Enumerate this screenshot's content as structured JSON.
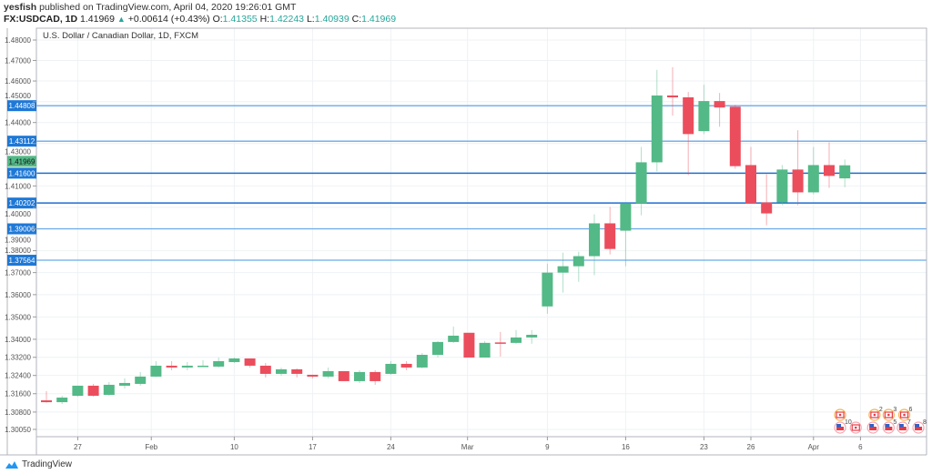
{
  "header": {
    "author": "yesfish",
    "published": "published on TradingView.com, April 04, 2020 19:26:01 GMT",
    "symbol": "FX:USDCAD, 1D",
    "last": "1.41969",
    "change": "+0.00614 (+0.43%)",
    "o_label": "O:",
    "o": "1.41355",
    "h_label": "H:",
    "h": "1.42243",
    "l_label": "L:",
    "l": "1.40939",
    "c_label": "C:",
    "c": "1.41969"
  },
  "footer": {
    "logo": "TradingView"
  },
  "colors": {
    "up": "#53b987",
    "down": "#eb4d5c",
    "line": "#1e78d6",
    "grid": "#eef2f5"
  },
  "chart_data": {
    "type": "candlestick",
    "title": "U.S. Dollar / Canadian Dollar, 1D, FXCM",
    "scale": "log",
    "ylim": [
      1.3005,
      1.48
    ],
    "y_ticks": [
      "1.48000",
      "1.47000",
      "1.46000",
      "1.45000",
      "1.44000",
      "1.43000",
      "1.41000",
      "1.40000",
      "1.39000",
      "1.38000",
      "1.37000",
      "1.36000",
      "1.35000",
      "1.34000",
      "1.33200",
      "1.32400",
      "1.31600",
      "1.30800",
      "1.30050"
    ],
    "x_ticks": [
      {
        "label": "27",
        "index": 2
      },
      {
        "label": "Feb",
        "index": 6.7
      },
      {
        "label": "10",
        "index": 12
      },
      {
        "label": "17",
        "index": 17
      },
      {
        "label": "24",
        "index": 22
      },
      {
        "label": "Mar",
        "index": 26.9
      },
      {
        "label": "9",
        "index": 32
      },
      {
        "label": "16",
        "index": 37
      },
      {
        "label": "23",
        "index": 42
      },
      {
        "label": "26",
        "index": 45
      },
      {
        "label": "Apr",
        "index": 49
      },
      {
        "label": "6",
        "index": 52
      }
    ],
    "horizontal_lines": [
      {
        "value": "1.44808",
        "dark": false
      },
      {
        "value": "1.43112",
        "dark": false
      },
      {
        "value": "1.41600",
        "dark": true
      },
      {
        "value": "1.40202",
        "dark": true
      },
      {
        "value": "1.39006",
        "dark": false
      },
      {
        "value": "1.37564",
        "dark": false
      }
    ],
    "last_price": "1.41969",
    "candles": [
      {
        "d": "Jan 23",
        "o": 1.3131,
        "h": 1.3171,
        "l": 1.3121,
        "c": 1.3123
      },
      {
        "d": "Jan 24",
        "o": 1.3123,
        "h": 1.3151,
        "l": 1.3115,
        "c": 1.3143
      },
      {
        "d": "Jan 27",
        "o": 1.3151,
        "h": 1.3195,
        "l": 1.3147,
        "c": 1.3195
      },
      {
        "d": "Jan 28",
        "o": 1.3195,
        "h": 1.3203,
        "l": 1.3147,
        "c": 1.3151
      },
      {
        "d": "Jan 29",
        "o": 1.3155,
        "h": 1.3211,
        "l": 1.3151,
        "c": 1.3199
      },
      {
        "d": "Jan 30",
        "o": 1.3195,
        "h": 1.3227,
        "l": 1.3183,
        "c": 1.3207
      },
      {
        "d": "Jan 31",
        "o": 1.3203,
        "h": 1.3255,
        "l": 1.3195,
        "c": 1.3235
      },
      {
        "d": "Feb 3",
        "o": 1.3235,
        "h": 1.3303,
        "l": 1.3233,
        "c": 1.3283
      },
      {
        "d": "Feb 4",
        "o": 1.3283,
        "h": 1.3303,
        "l": 1.3263,
        "c": 1.3275
      },
      {
        "d": "Feb 5",
        "o": 1.3275,
        "h": 1.3299,
        "l": 1.3263,
        "c": 1.3283
      },
      {
        "d": "Feb 6",
        "o": 1.3282,
        "h": 1.3307,
        "l": 1.3279,
        "c": 1.3283
      },
      {
        "d": "Feb 7",
        "o": 1.3279,
        "h": 1.3319,
        "l": 1.3275,
        "c": 1.3303
      },
      {
        "d": "Feb 10",
        "o": 1.3299,
        "h": 1.3319,
        "l": 1.3295,
        "c": 1.3315
      },
      {
        "d": "Feb 11",
        "o": 1.3315,
        "h": 1.3315,
        "l": 1.3275,
        "c": 1.3283
      },
      {
        "d": "Feb 12",
        "o": 1.3283,
        "h": 1.3295,
        "l": 1.3231,
        "c": 1.3247
      },
      {
        "d": "Feb 13",
        "o": 1.3247,
        "h": 1.3275,
        "l": 1.3239,
        "c": 1.3267
      },
      {
        "d": "Feb 14",
        "o": 1.3267,
        "h": 1.3271,
        "l": 1.3231,
        "c": 1.3247
      },
      {
        "d": "Feb 17",
        "o": 1.3243,
        "h": 1.3243,
        "l": 1.3227,
        "c": 1.3235
      },
      {
        "d": "Feb 18",
        "o": 1.3235,
        "h": 1.3275,
        "l": 1.3227,
        "c": 1.3259
      },
      {
        "d": "Feb 19",
        "o": 1.3259,
        "h": 1.3259,
        "l": 1.3215,
        "c": 1.3215
      },
      {
        "d": "Feb 20",
        "o": 1.3215,
        "h": 1.3263,
        "l": 1.3207,
        "c": 1.3255
      },
      {
        "d": "Feb 21",
        "o": 1.3255,
        "h": 1.3263,
        "l": 1.3199,
        "c": 1.3215
      },
      {
        "d": "Feb 24",
        "o": 1.3247,
        "h": 1.3303,
        "l": 1.3243,
        "c": 1.3291
      },
      {
        "d": "Feb 25",
        "o": 1.3291,
        "h": 1.3303,
        "l": 1.3263,
        "c": 1.3275
      },
      {
        "d": "Feb 26",
        "o": 1.3275,
        "h": 1.3339,
        "l": 1.3271,
        "c": 1.3331
      },
      {
        "d": "Feb 27",
        "o": 1.3331,
        "h": 1.3392,
        "l": 1.3319,
        "c": 1.3388
      },
      {
        "d": "Feb 28",
        "o": 1.3388,
        "h": 1.3457,
        "l": 1.3384,
        "c": 1.3416
      },
      {
        "d": "Mar 2",
        "o": 1.3429,
        "h": 1.3429,
        "l": 1.3319,
        "c": 1.3319
      },
      {
        "d": "Mar 3",
        "o": 1.3319,
        "h": 1.3392,
        "l": 1.3319,
        "c": 1.3384
      },
      {
        "d": "Mar 4",
        "o": 1.3386,
        "h": 1.3433,
        "l": 1.3323,
        "c": 1.3382
      },
      {
        "d": "Mar 5",
        "o": 1.3384,
        "h": 1.3441,
        "l": 1.338,
        "c": 1.3408
      },
      {
        "d": "Mar 6",
        "o": 1.3408,
        "h": 1.3441,
        "l": 1.338,
        "c": 1.342
      },
      {
        "d": "Mar 9",
        "o": 1.3547,
        "h": 1.3741,
        "l": 1.3514,
        "c": 1.37
      },
      {
        "d": "Mar 10",
        "o": 1.37,
        "h": 1.3791,
        "l": 1.3609,
        "c": 1.3729
      },
      {
        "d": "Mar 11",
        "o": 1.3729,
        "h": 1.3795,
        "l": 1.3658,
        "c": 1.3775
      },
      {
        "d": "Mar 12",
        "o": 1.3775,
        "h": 1.3968,
        "l": 1.3688,
        "c": 1.3926
      },
      {
        "d": "Mar 13",
        "o": 1.3926,
        "h": 1.4002,
        "l": 1.3783,
        "c": 1.3808
      },
      {
        "d": "Mar 16",
        "o": 1.3892,
        "h": 1.4019,
        "l": 1.3729,
        "c": 1.4019
      },
      {
        "d": "Mar 17",
        "o": 1.4019,
        "h": 1.4284,
        "l": 1.3963,
        "c": 1.4211
      },
      {
        "d": "Mar 18",
        "o": 1.4211,
        "h": 1.4654,
        "l": 1.4168,
        "c": 1.453
      },
      {
        "d": "Mar 19",
        "o": 1.453,
        "h": 1.4667,
        "l": 1.4433,
        "c": 1.4521
      },
      {
        "d": "Mar 20",
        "o": 1.4521,
        "h": 1.4547,
        "l": 1.4151,
        "c": 1.4345
      },
      {
        "d": "Mar 23",
        "o": 1.4359,
        "h": 1.4582,
        "l": 1.4345,
        "c": 1.4503
      },
      {
        "d": "Mar 24",
        "o": 1.4503,
        "h": 1.4542,
        "l": 1.438,
        "c": 1.4472
      },
      {
        "d": "Mar 25",
        "o": 1.4476,
        "h": 1.4485,
        "l": 1.4181,
        "c": 1.4193
      },
      {
        "d": "Mar 26",
        "o": 1.4198,
        "h": 1.4284,
        "l": 1.4019,
        "c": 1.4019
      },
      {
        "d": "Mar 27",
        "o": 1.4023,
        "h": 1.4155,
        "l": 1.3917,
        "c": 1.3972
      },
      {
        "d": "Mar 30",
        "o": 1.4023,
        "h": 1.4198,
        "l": 1.401,
        "c": 1.4177
      },
      {
        "d": "Mar 31",
        "o": 1.4177,
        "h": 1.4363,
        "l": 1.401,
        "c": 1.407
      },
      {
        "d": "Apr 1",
        "o": 1.407,
        "h": 1.4284,
        "l": 1.4061,
        "c": 1.4198
      },
      {
        "d": "Apr 2",
        "o": 1.4198,
        "h": 1.4306,
        "l": 1.4091,
        "c": 1.4147
      },
      {
        "d": "Apr 3",
        "o": 1.41355,
        "h": 1.42243,
        "l": 1.40939,
        "c": 1.41969
      }
    ],
    "events": [
      {
        "country": "CA",
        "row": 0,
        "index": 50.7,
        "count": ""
      },
      {
        "country": "CA",
        "row": 0,
        "index": 52.9,
        "count": "2"
      },
      {
        "country": "CA",
        "row": 0,
        "index": 53.8,
        "count": "3"
      },
      {
        "country": "CA",
        "row": 0,
        "index": 54.8,
        "count": "6"
      },
      {
        "country": "US",
        "row": 1,
        "index": 50.7,
        "count": "10"
      },
      {
        "country": "CA",
        "row": 1,
        "index": 51.7,
        "count": ""
      },
      {
        "country": "US",
        "row": 1,
        "index": 52.8,
        "count": ""
      },
      {
        "country": "US",
        "row": 1,
        "index": 53.8,
        "count": "5"
      },
      {
        "country": "US",
        "row": 1,
        "index": 54.7,
        "count": "7"
      },
      {
        "country": "US",
        "row": 1,
        "index": 55.7,
        "count": "8"
      }
    ]
  }
}
